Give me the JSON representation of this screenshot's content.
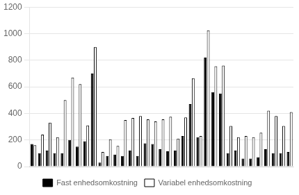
{
  "chart_data": {
    "type": "bar",
    "categories": [
      null,
      null,
      null,
      null,
      null,
      null,
      null,
      null,
      null,
      null,
      null,
      null,
      null,
      null,
      null,
      null,
      null,
      null,
      null,
      null,
      null,
      null,
      null,
      null,
      null,
      null,
      null,
      null,
      null,
      null,
      null,
      null,
      null,
      null,
      null
    ],
    "series": [
      {
        "name": "Fast enhedsomkostning",
        "color": "#000000",
        "values": [
          170,
          100,
          120,
          100,
          100,
          200,
          150,
          190,
          700,
          30,
          80,
          90,
          80,
          120,
          80,
          175,
          170,
          130,
          115,
          120,
          230,
          470,
          220,
          820,
          560,
          550,
          100,
          120,
          60,
          60,
          70,
          130,
          100,
          100,
          110
        ]
      },
      {
        "name": "Variabel enhedsomkostning",
        "color": "#ffffff",
        "values": [
          160,
          240,
          330,
          220,
          500,
          670,
          620,
          310,
          900,
          110,
          205,
          155,
          350,
          365,
          380,
          355,
          340,
          355,
          375,
          210,
          370,
          665,
          230,
          1025,
          755,
          760,
          305,
          220,
          230,
          220,
          255,
          420,
          380,
          305,
          410
        ]
      }
    ],
    "ylim": [
      0,
      1200
    ],
    "yticks": [
      0,
      200,
      400,
      600,
      800,
      1000,
      1200
    ],
    "grid": true,
    "legend": "bottom",
    "tick_labels": "y"
  }
}
